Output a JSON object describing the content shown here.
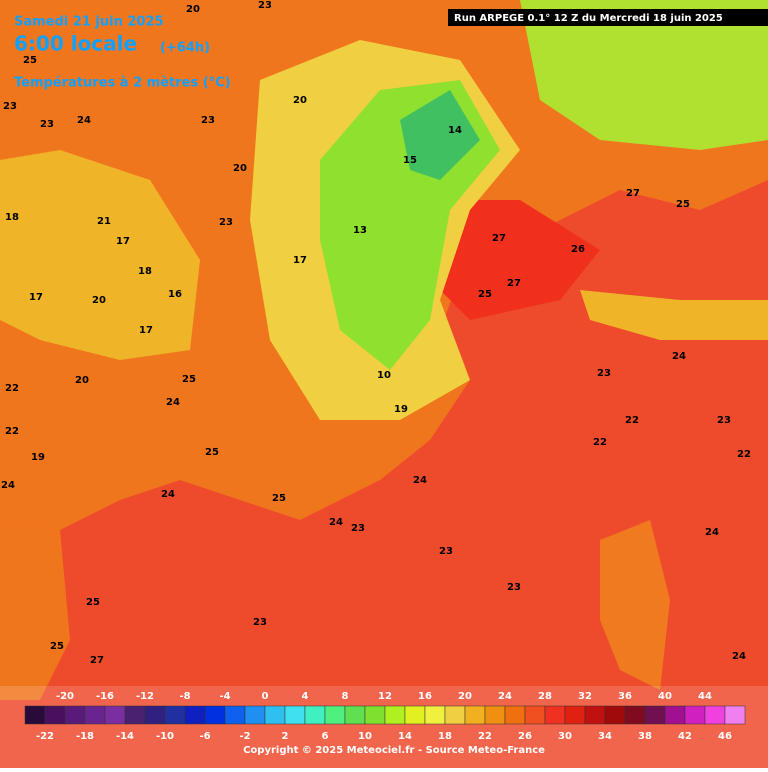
{
  "header": {
    "date": "Samedi 21 juin 2025",
    "time": "6:00 locale",
    "lead": "(+64h)",
    "field": "Températures à 2 mètres (°C)",
    "run": "Run ARPEGE 0.1° 12 Z du Mercredi 18 juin 2025"
  },
  "legend": {
    "range": [
      -24,
      48
    ],
    "colors": [
      "#2a0a3a",
      "#4a1060",
      "#5a1a7a",
      "#6a2490",
      "#7a2ea0",
      "#4a2070",
      "#302080",
      "#2030a0",
      "#1020c0",
      "#0030e0",
      "#1060f0",
      "#2090f0",
      "#30c0f0",
      "#40e0f0",
      "#40f0c0",
      "#50f080",
      "#60e050",
      "#80e030",
      "#b0f020",
      "#e0f020",
      "#f0f040",
      "#f0d040",
      "#f0b020",
      "#f09010",
      "#f07010",
      "#f05020",
      "#f03020",
      "#e02010",
      "#c01010",
      "#a00a0a",
      "#800a20",
      "#701050",
      "#a01090",
      "#d020c0",
      "#f040e0",
      "#f080f0"
    ],
    "ticks_top": [
      -20,
      -16,
      -12,
      -8,
      -4,
      0,
      4,
      8,
      12,
      16,
      20,
      24,
      28,
      32,
      36,
      40,
      44
    ],
    "ticks_bottom": [
      -22,
      -18,
      -14,
      -10,
      -6,
      -2,
      2,
      6,
      10,
      14,
      18,
      22,
      26,
      30,
      34,
      38,
      42,
      46
    ]
  },
  "map_labels": [
    20,
    23,
    25,
    23,
    23,
    24,
    18,
    21,
    17,
    18,
    17,
    20,
    16,
    17,
    20,
    22,
    22,
    25,
    24,
    25,
    24,
    25,
    23,
    23,
    23,
    23,
    22,
    22,
    23,
    22,
    24,
    24,
    25,
    27,
    27,
    27,
    25,
    26,
    23,
    24,
    19,
    24,
    25,
    25,
    27,
    24,
    13,
    15,
    14,
    20,
    20,
    23,
    23,
    17,
    10,
    19,
    24
  ],
  "footer": {
    "copyright": "Copyright © 2025 Meteociel.fr - Source Meteo-France"
  }
}
